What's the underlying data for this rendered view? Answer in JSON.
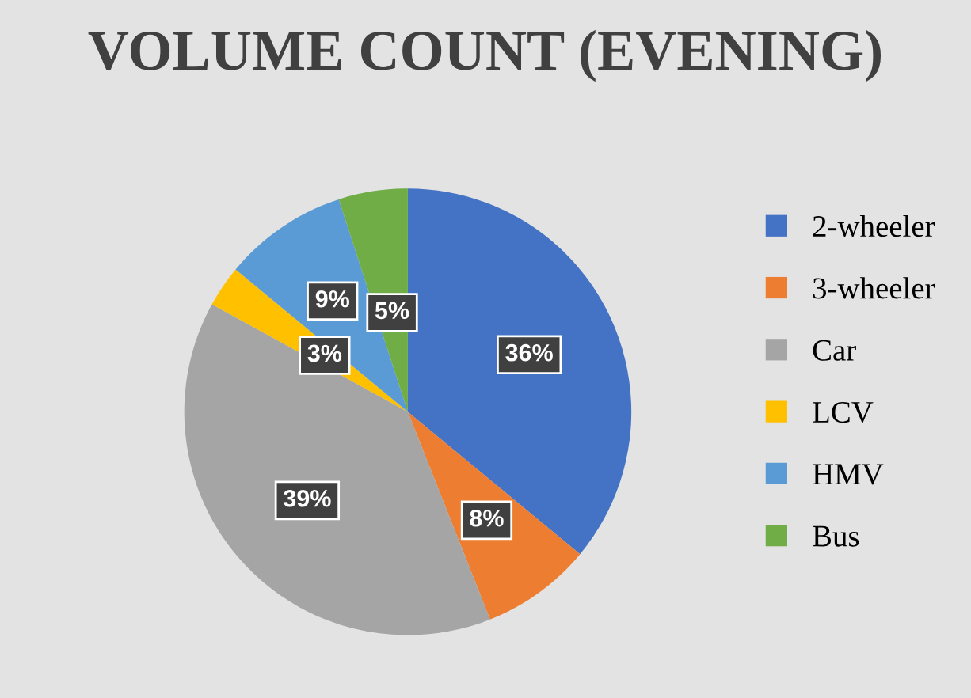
{
  "chart_data": {
    "type": "pie",
    "title": "VOLUME COUNT (EVENING)",
    "categories": [
      "2-wheeler",
      "3-wheeler",
      "Car",
      "LCV",
      "HMV",
      "Bus"
    ],
    "values": [
      36,
      8,
      39,
      3,
      9,
      5
    ],
    "colors": [
      "#4472c4",
      "#ed7d31",
      "#a5a5a5",
      "#ffc000",
      "#5b9bd5",
      "#70ad47"
    ],
    "value_labels": [
      "36%",
      "8%",
      "39%",
      "3%",
      "9%",
      "5%"
    ],
    "legend": "right"
  }
}
